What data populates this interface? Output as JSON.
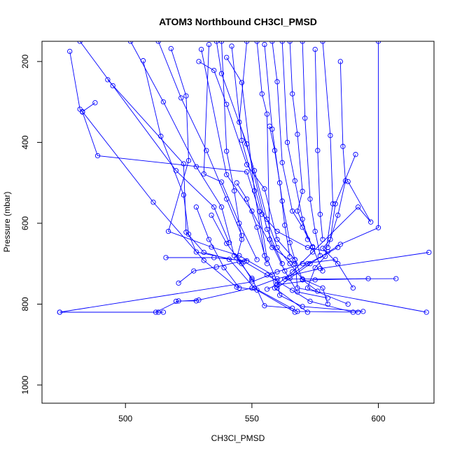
{
  "chart_data": {
    "type": "scatter",
    "title": "ATOM3 Northbound CH3Cl_PMSD",
    "xlabel": "CH3Cl_PMSD",
    "ylabel": "Pressure (mbar)",
    "xlim": [
      467,
      622
    ],
    "ylim": [
      1045,
      150
    ],
    "y_axis_reversed": true,
    "x_ticks": [
      500,
      550,
      600
    ],
    "y_ticks": [
      200,
      400,
      600,
      800,
      1000
    ],
    "grid": false,
    "color": "#0000ff",
    "marker": "open-circle",
    "series": [
      {
        "points": [
          [
            478,
            175
          ],
          [
            482,
            318
          ],
          [
            483,
            325
          ],
          [
            489,
            433
          ],
          [
            548,
            473
          ],
          [
            553,
            571
          ],
          [
            556,
            688
          ],
          [
            560,
            744
          ],
          [
            561,
            778
          ],
          [
            570,
            806
          ],
          [
            594,
            818
          ]
        ]
      },
      {
        "points": [
          [
            488,
            302
          ],
          [
            483,
            324
          ],
          [
            511,
            548
          ],
          [
            531,
            692
          ],
          [
            544,
            758
          ],
          [
            552,
            765
          ],
          [
            567,
            820
          ]
        ]
      },
      {
        "points": [
          [
            507,
            198
          ],
          [
            514,
            385
          ],
          [
            523,
            530
          ],
          [
            525,
            627
          ],
          [
            528,
            671
          ],
          [
            547,
            695
          ],
          [
            556,
            728
          ],
          [
            566,
            766
          ],
          [
            573,
            793
          ],
          [
            590,
            820
          ]
        ]
      },
      {
        "points": [
          [
            493,
            245
          ],
          [
            523,
            453
          ],
          [
            524,
            622
          ],
          [
            531,
            672
          ],
          [
            541,
            689
          ],
          [
            551,
            760
          ],
          [
            568,
            818
          ],
          [
            592,
            820
          ]
        ]
      },
      {
        "points": [
          [
            518,
            168
          ],
          [
            524,
            285
          ],
          [
            525,
            445
          ],
          [
            517,
            620
          ],
          [
            534,
            659
          ],
          [
            545,
            680
          ],
          [
            558,
            727
          ],
          [
            559,
            760
          ],
          [
            572,
            820
          ]
        ]
      },
      {
        "points": [
          [
            529,
            200
          ],
          [
            535,
            222
          ],
          [
            540,
            306
          ],
          [
            548,
            455
          ],
          [
            555,
            515
          ],
          [
            560,
            640
          ],
          [
            567,
            690
          ],
          [
            568,
            760
          ],
          [
            619,
            820
          ]
        ]
      },
      {
        "points": [
          [
            538,
            150
          ],
          [
            540,
            422
          ],
          [
            543,
            520
          ],
          [
            546,
            640
          ],
          [
            544,
            686
          ],
          [
            550,
            736
          ],
          [
            555,
            804
          ],
          [
            566,
            810
          ]
        ]
      },
      {
        "points": [
          [
            548,
            150
          ],
          [
            545,
            350
          ],
          [
            551,
            470
          ],
          [
            556,
            590
          ],
          [
            560,
            660
          ],
          [
            565,
            700
          ],
          [
            570,
            738
          ],
          [
            578,
            760
          ],
          [
            580,
            800
          ]
        ]
      },
      {
        "points": [
          [
            552,
            150
          ],
          [
            554,
            280
          ],
          [
            556,
            330
          ],
          [
            557,
            640
          ],
          [
            563,
            718
          ],
          [
            568,
            770
          ],
          [
            580,
            785
          ]
        ]
      },
      {
        "points": [
          [
            555,
            158
          ],
          [
            558,
            367
          ],
          [
            562,
            545
          ],
          [
            565,
            648
          ],
          [
            567,
            690
          ],
          [
            570,
            740
          ],
          [
            576,
            768
          ]
        ]
      },
      {
        "points": [
          [
            565,
            150
          ],
          [
            566,
            280
          ],
          [
            568,
            380
          ],
          [
            570,
            521
          ],
          [
            568,
            570
          ],
          [
            574,
            660
          ],
          [
            578,
            718
          ]
        ]
      },
      {
        "points": [
          [
            578,
            150
          ],
          [
            581,
            383
          ],
          [
            582,
            552
          ],
          [
            579,
            682
          ],
          [
            575,
            710
          ],
          [
            572,
            760
          ],
          [
            588,
            800
          ]
        ]
      },
      {
        "points": [
          [
            591,
            430
          ],
          [
            583,
            552
          ],
          [
            581,
            640
          ],
          [
            578,
            662
          ],
          [
            584,
            700
          ],
          [
            590,
            760
          ]
        ]
      },
      {
        "points": [
          [
            600,
            150
          ],
          [
            600,
            611
          ],
          [
            585,
            652
          ],
          [
            573,
            700
          ],
          [
            565,
            736
          ],
          [
            560,
            760
          ]
        ]
      },
      {
        "points": [
          [
            588,
            497
          ],
          [
            597,
            597
          ],
          [
            592,
            560
          ],
          [
            574,
            671
          ],
          [
            566,
            720
          ],
          [
            560,
            752
          ],
          [
            556,
            763
          ]
        ]
      },
      {
        "points": [
          [
            620,
            672
          ],
          [
            577,
            712
          ],
          [
            560,
            737
          ],
          [
            550,
            760
          ],
          [
            529,
            790
          ],
          [
            520,
            793
          ]
        ]
      },
      {
        "points": [
          [
            474,
            820
          ],
          [
            550,
            745
          ],
          [
            560,
            720
          ],
          [
            570,
            700
          ],
          [
            583,
            690
          ]
        ]
      },
      {
        "points": [
          [
            474,
            820
          ],
          [
            513,
            820
          ],
          [
            515,
            820
          ]
        ]
      },
      {
        "points": [
          [
            516,
            685
          ],
          [
            535,
            685
          ],
          [
            548,
            693
          ]
        ]
      },
      {
        "points": [
          [
            512,
            820
          ],
          [
            521,
            792
          ],
          [
            528,
            792
          ]
        ]
      },
      {
        "points": [
          [
            521,
            748
          ],
          [
            527,
            718
          ],
          [
            536,
            708
          ],
          [
            545,
            695
          ]
        ]
      },
      {
        "points": [
          [
            584,
            660
          ],
          [
            572,
            700
          ],
          [
            563,
            738
          ],
          [
            607,
            737
          ]
        ]
      },
      {
        "points": [
          [
            596,
            737
          ],
          [
            575,
            740
          ],
          [
            560,
            752
          ]
        ]
      },
      {
        "points": [
          [
            542,
            162
          ],
          [
            546,
            395
          ],
          [
            554,
            578
          ],
          [
            560,
            620
          ],
          [
            572,
            660
          ],
          [
            580,
            670
          ]
        ]
      },
      {
        "points": [
          [
            536,
            150
          ],
          [
            538,
            230
          ],
          [
            548,
            404
          ],
          [
            556,
            615
          ],
          [
            562,
            700
          ]
        ]
      },
      {
        "points": [
          [
            530,
            170
          ],
          [
            540,
            480
          ],
          [
            550,
            570
          ],
          [
            558,
            660
          ],
          [
            567,
            700
          ]
        ]
      },
      {
        "points": [
          [
            533,
            158
          ],
          [
            531,
            478
          ],
          [
            538,
            498
          ],
          [
            545,
            600
          ],
          [
            552,
            690
          ]
        ]
      },
      {
        "points": [
          [
            540,
            190
          ],
          [
            546,
            252
          ],
          [
            551,
            520
          ],
          [
            555,
            680
          ]
        ]
      },
      {
        "points": [
          [
            558,
            150
          ],
          [
            560,
            250
          ],
          [
            562,
            450
          ],
          [
            566,
            570
          ],
          [
            570,
            610
          ],
          [
            574,
            658
          ]
        ]
      },
      {
        "points": [
          [
            562,
            150
          ],
          [
            564,
            400
          ],
          [
            567,
            495
          ],
          [
            570,
            590
          ],
          [
            572,
            640
          ]
        ]
      },
      {
        "points": [
          [
            570,
            150
          ],
          [
            571,
            340
          ],
          [
            573,
            540
          ],
          [
            575,
            620
          ],
          [
            577,
            680
          ]
        ]
      },
      {
        "points": [
          [
            575,
            170
          ],
          [
            576,
            420
          ],
          [
            577,
            578
          ],
          [
            578,
            640
          ]
        ]
      },
      {
        "points": [
          [
            585,
            200
          ],
          [
            586,
            410
          ],
          [
            587,
            495
          ],
          [
            584,
            580
          ],
          [
            580,
            660
          ]
        ]
      },
      {
        "points": [
          [
            557,
            360
          ],
          [
            559,
            420
          ],
          [
            561,
            500
          ],
          [
            563,
            605
          ],
          [
            565,
            683
          ]
        ]
      },
      {
        "points": [
          [
            544,
            500
          ],
          [
            548,
            540
          ],
          [
            552,
            610
          ],
          [
            556,
            700
          ]
        ]
      },
      {
        "points": [
          [
            534,
            580
          ],
          [
            540,
            650
          ],
          [
            546,
            700
          ],
          [
            550,
            740
          ]
        ]
      },
      {
        "points": [
          [
            528,
            560
          ],
          [
            533,
            640
          ],
          [
            539,
            710
          ],
          [
            545,
            760
          ]
        ]
      },
      {
        "points": [
          [
            482,
            150
          ],
          [
            495,
            260
          ],
          [
            520,
            470
          ],
          [
            535,
            560
          ],
          [
            541,
            648
          ]
        ]
      },
      {
        "points": [
          [
            502,
            150
          ],
          [
            515,
            300
          ],
          [
            528,
            460
          ],
          [
            538,
            560
          ],
          [
            543,
            680
          ]
        ]
      },
      {
        "points": [
          [
            513,
            150
          ],
          [
            522,
            290
          ],
          [
            532,
            420
          ],
          [
            540,
            540
          ],
          [
            546,
            630
          ]
        ]
      }
    ]
  }
}
